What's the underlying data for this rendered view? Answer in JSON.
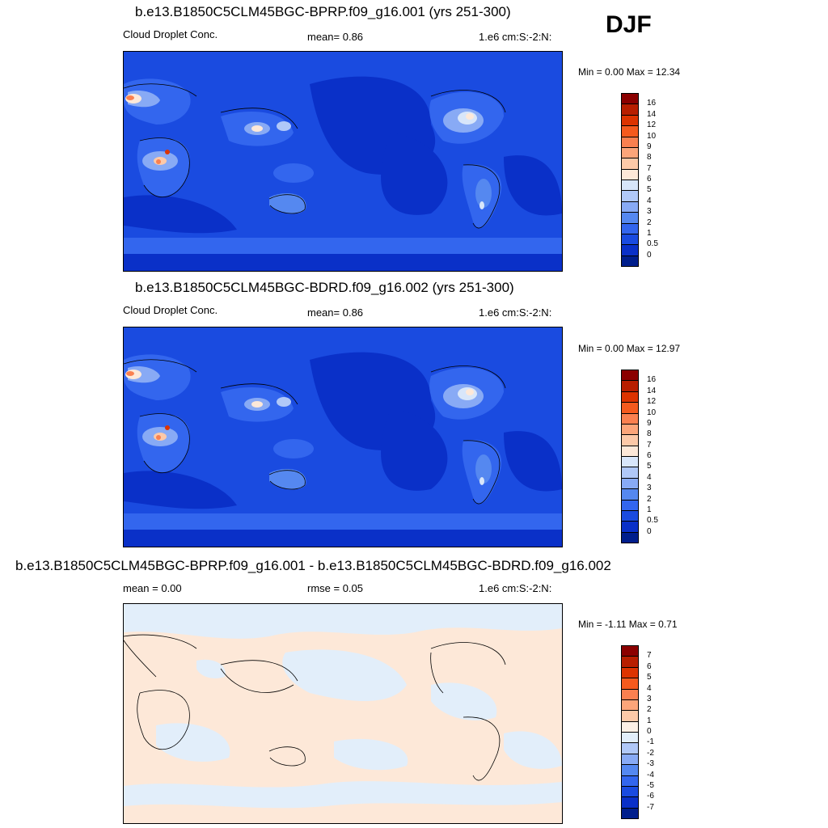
{
  "season": "DJF",
  "panels": [
    {
      "title": "b.e13.B1850C5CLM45BGC-BPRP.f09_g16.001 (yrs 251-300)",
      "left_label": "Cloud Droplet Conc.",
      "mid_label": "mean=   0.86",
      "units": "1.e6 cm:S:-2:N:",
      "minmax": "Min =   0.00 Max =  12.34"
    },
    {
      "title": "b.e13.B1850C5CLM45BGC-BDRD.f09_g16.002 (yrs 251-300)",
      "left_label": "Cloud Droplet Conc.",
      "mid_label": "mean=   0.86",
      "units": "1.e6 cm:S:-2:N:",
      "minmax": "Min =   0.00 Max =  12.97"
    },
    {
      "title": "b.e13.B1850C5CLM45BGC-BPRP.f09_g16.001 - b.e13.B1850C5CLM45BGC-BDRD.f09_g16.002",
      "left_label": "mean =   0.00",
      "mid_label": "rmse =   0.05",
      "units": "1.e6 cm:S:-2:N:",
      "minmax": "Min =  -1.11 Max =   0.71"
    }
  ],
  "colorbar_abs": {
    "labels": [
      "16",
      "14",
      "12",
      "10",
      "9",
      "8",
      "7",
      "6",
      "5",
      "4",
      "3",
      "2",
      "1",
      "0.5",
      "0"
    ],
    "colors": [
      "#8b0000",
      "#b81e00",
      "#dd3300",
      "#f55a1e",
      "#fa8050",
      "#fca57a",
      "#fdc9a8",
      "#fde8d8",
      "#d8e6fa",
      "#b0c8f8",
      "#88aaf5",
      "#5588f0",
      "#3366ee",
      "#1a4be0",
      "#0a30c8",
      "#001e8c"
    ]
  },
  "colorbar_diff": {
    "labels": [
      "7",
      "6",
      "5",
      "4",
      "3",
      "2",
      "1",
      "0",
      "-1",
      "-2",
      "-3",
      "-4",
      "-5",
      "-6",
      "-7"
    ],
    "colors": [
      "#8b0000",
      "#b81e00",
      "#dd3300",
      "#f55a1e",
      "#fa8050",
      "#fca57a",
      "#fdc9a8",
      "#fdf0e6",
      "#e2eefa",
      "#b0c8f8",
      "#88aaf5",
      "#5588f0",
      "#3366ee",
      "#1a4be0",
      "#0a30c8",
      "#001e8c"
    ]
  }
}
